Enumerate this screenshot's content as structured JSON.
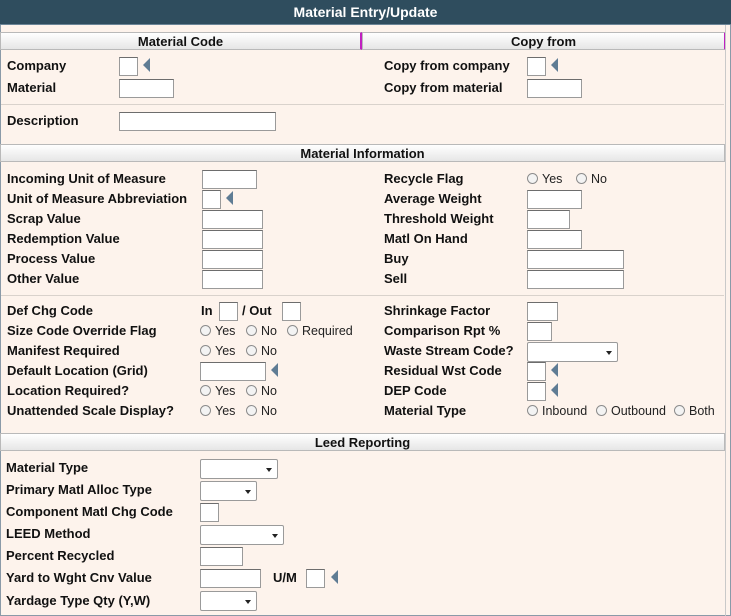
{
  "window": {
    "title": "Material Entry/Update"
  },
  "sections": {
    "material_code": "Material Code",
    "copy_from": "Copy from",
    "material_information": "Material Information",
    "leed_reporting": "Leed Reporting"
  },
  "header_fields": {
    "company": "Company",
    "material": "Material",
    "description": "Description",
    "copy_from_company": "Copy from company",
    "copy_from_material": "Copy from material"
  },
  "info": {
    "incoming_uom": "Incoming Unit of Measure",
    "uom_abbrev": "Unit of Measure Abbreviation",
    "scrap_value": "Scrap Value",
    "redemption_value": "Redemption Value",
    "process_value": "Process Value",
    "other_value": "Other Value",
    "recycle_flag": "Recycle Flag",
    "average_weight": "Average Weight",
    "threshold_weight": "Threshold Weight",
    "matl_on_hand": "Matl On Hand",
    "buy": "Buy",
    "sell": "Sell"
  },
  "options": {
    "yes": "Yes",
    "no": "No",
    "required": "Required",
    "inbound": "Inbound",
    "outbound": "Outbound",
    "both": "Both"
  },
  "charges": {
    "def_chg_code": "Def Chg Code",
    "in": "In",
    "out": "/ Out",
    "size_code_override": "Size Code Override Flag",
    "manifest_required": "Manifest Required",
    "default_location": "Default Location (Grid)",
    "location_required": "Location Required?",
    "unattended_scale": "Unattended Scale Display?",
    "shrinkage_factor": "Shrinkage Factor",
    "comparison_rpt": "Comparison Rpt %",
    "waste_stream_code": "Waste Stream Code?",
    "residual_wst_code": "Residual Wst Code",
    "dep_code": "DEP Code",
    "material_type": "Material Type"
  },
  "leed": {
    "material_type": "Material Type",
    "primary_alloc": "Primary Matl Alloc Type",
    "component_chg": "Component Matl Chg Code",
    "leed_method": "LEED Method",
    "percent_recycled": "Percent Recycled",
    "yard_to_wght": "Yard to Wght Cnv Value",
    "um": "U/M",
    "yardage_type": "Yardage Type Qty (Y,W)"
  },
  "icons": {
    "lookup": "triangle-left-icon",
    "dropdown": "chevron-down-icon",
    "radio": "radio-icon"
  }
}
